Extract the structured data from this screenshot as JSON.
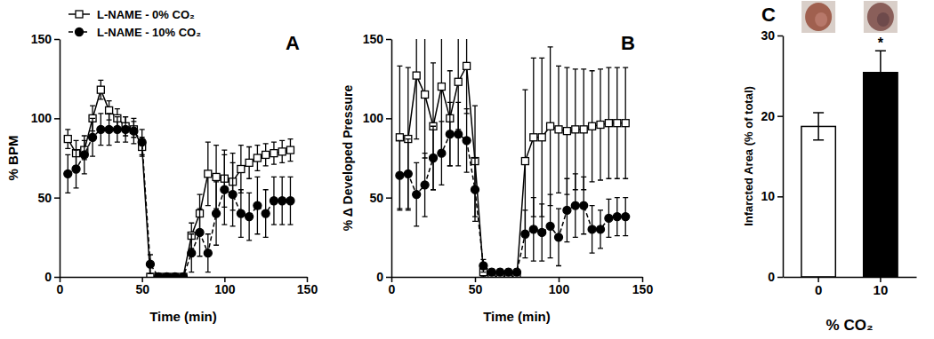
{
  "chart_data": [
    {
      "type": "line",
      "title": "A",
      "x_label": "Time (min)",
      "y_label": "% BPM",
      "x": [
        5,
        10,
        15,
        20,
        25,
        30,
        35,
        40,
        45,
        50,
        55,
        60,
        65,
        70,
        75,
        80,
        85,
        90,
        95,
        100,
        105,
        110,
        115,
        120,
        125,
        130,
        135,
        140
      ],
      "xlim": [
        0,
        150
      ],
      "xticks": [
        0,
        50,
        100,
        150
      ],
      "ylim": [
        0,
        150
      ],
      "yticks": [
        0,
        50,
        100,
        150
      ],
      "legend": "top-left",
      "series": [
        {
          "name": "L-NAME - 0% CO₂",
          "color": "#000000",
          "marker": "square-open",
          "line_style": "solid",
          "values": [
            87,
            78,
            80,
            100,
            118,
            105,
            100,
            95,
            93,
            82,
            0,
            0,
            0,
            0,
            0,
            26,
            40,
            65,
            63,
            62,
            60,
            68,
            72,
            75,
            77,
            78,
            79,
            80
          ],
          "errors": [
            6,
            8,
            6,
            8,
            6,
            6,
            6,
            6,
            5,
            6,
            0,
            0,
            0,
            0,
            0,
            8,
            12,
            20,
            20,
            18,
            18,
            15,
            10,
            8,
            7,
            7,
            7,
            7
          ]
        },
        {
          "name": "L-NAME - 10% CO₂",
          "color": "#000000",
          "marker": "circle",
          "line_style": "dashed",
          "values": [
            65,
            68,
            77,
            88,
            93,
            93,
            93,
            93,
            92,
            85,
            8,
            0,
            0,
            0,
            0,
            15,
            28,
            15,
            40,
            55,
            52,
            40,
            38,
            45,
            40,
            48,
            48,
            48
          ],
          "errors": [
            12,
            12,
            12,
            12,
            10,
            10,
            8,
            8,
            8,
            8,
            6,
            0,
            0,
            0,
            0,
            12,
            15,
            12,
            20,
            22,
            20,
            15,
            15,
            18,
            15,
            15,
            15,
            15
          ]
        }
      ]
    },
    {
      "type": "line",
      "title": "B",
      "x_label": "Time (min)",
      "y_label": "% Δ Developed Pressure",
      "x": [
        5,
        10,
        15,
        20,
        25,
        30,
        35,
        40,
        45,
        50,
        55,
        60,
        65,
        70,
        75,
        80,
        85,
        90,
        95,
        100,
        105,
        110,
        115,
        120,
        125,
        130,
        135,
        140
      ],
      "xlim": [
        0,
        150
      ],
      "xticks": [
        0,
        50,
        100,
        150
      ],
      "ylim": [
        0,
        150
      ],
      "yticks": [
        0,
        50,
        100,
        150
      ],
      "series": [
        {
          "color": "#000000",
          "marker": "square-open",
          "line_style": "solid",
          "values": [
            88,
            87,
            127,
            115,
            95,
            120,
            100,
            123,
            133,
            73,
            3,
            0,
            0,
            0,
            0,
            73,
            88,
            88,
            95,
            93,
            92,
            93,
            93,
            95,
            96,
            97,
            97,
            97
          ],
          "errors": [
            45,
            45,
            40,
            40,
            40,
            40,
            30,
            30,
            30,
            35,
            3,
            0,
            0,
            0,
            0,
            45,
            50,
            50,
            50,
            40,
            40,
            38,
            38,
            35,
            35,
            35,
            35,
            35
          ]
        },
        {
          "color": "#000000",
          "marker": "circle",
          "line_style": "dashed",
          "values": [
            64,
            65,
            52,
            58,
            75,
            78,
            90,
            90,
            86,
            55,
            7,
            3,
            3,
            3,
            3,
            27,
            30,
            28,
            32,
            25,
            42,
            45,
            45,
            30,
            30,
            37,
            38,
            38
          ],
          "errors": [
            22,
            22,
            20,
            20,
            20,
            20,
            20,
            20,
            20,
            20,
            4,
            2,
            2,
            2,
            2,
            15,
            20,
            18,
            20,
            18,
            20,
            20,
            18,
            15,
            12,
            12,
            12,
            12
          ]
        }
      ]
    },
    {
      "type": "bar",
      "title": "C",
      "x_label": "% CO₂",
      "y_label": "Infarcted Area (% of total)",
      "categories": [
        "0",
        "10"
      ],
      "values": [
        18.7,
        25.4
      ],
      "errors": [
        1.7,
        2.7
      ],
      "colors": [
        "#ffffff",
        "#000000"
      ],
      "ylim": [
        0,
        30
      ],
      "yticks": [
        0,
        10,
        20,
        30
      ],
      "annotations": [
        {
          "text": "*",
          "category": "10"
        }
      ]
    }
  ]
}
